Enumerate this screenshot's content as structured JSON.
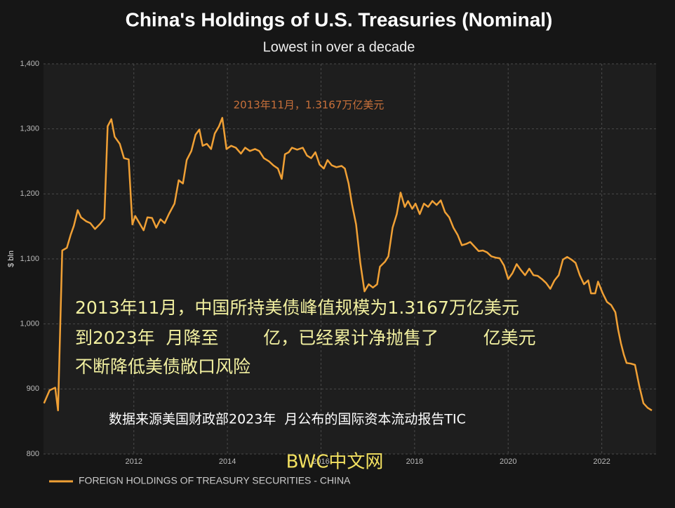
{
  "chart_data": {
    "type": "line",
    "title": "China's Holdings of U.S. Treasuries (Nominal)",
    "subtitle": "Lowest in over a decade",
    "y_label": "$ bln",
    "annotation": "2013年11月，1.3167万亿美元",
    "legend_position": "bottom-left",
    "grid": true,
    "xlim": [
      2010.07,
      2023.16
    ],
    "xticks": [
      2012,
      2014,
      2016,
      2018,
      2020,
      2022
    ],
    "ylim": [
      800,
      1400
    ],
    "yticks": [
      {
        "value": 800,
        "label": "800"
      },
      {
        "value": 900,
        "label": "900"
      },
      {
        "value": 1000,
        "label": "1,000"
      },
      {
        "value": 1100,
        "label": "1,100"
      },
      {
        "value": 1200,
        "label": "1,200"
      },
      {
        "value": 1300,
        "label": "1,300"
      },
      {
        "value": 1400,
        "label": "1,400"
      }
    ],
    "x": [
      2010.08,
      2010.2,
      2010.32,
      2010.38,
      2010.47,
      2010.57,
      2010.65,
      2010.72,
      2010.8,
      2010.87,
      2010.98,
      2011.07,
      2011.17,
      2011.28,
      2011.37,
      2011.44,
      2011.52,
      2011.59,
      2011.7,
      2011.79,
      2011.89,
      2011.97,
      2012.03,
      2012.12,
      2012.21,
      2012.29,
      2012.39,
      2012.48,
      2012.57,
      2012.66,
      2012.75,
      2012.87,
      2012.96,
      2013.05,
      2013.13,
      2013.23,
      2013.32,
      2013.4,
      2013.47,
      2013.56,
      2013.65,
      2013.73,
      2013.82,
      2013.89,
      2013.98,
      2014.08,
      2014.18,
      2014.29,
      2014.38,
      2014.48,
      2014.59,
      2014.68,
      2014.78,
      2014.89,
      2014.98,
      2015.08,
      2015.16,
      2015.23,
      2015.31,
      2015.38,
      2015.49,
      2015.61,
      2015.7,
      2015.79,
      2015.88,
      2015.97,
      2016.06,
      2016.14,
      2016.23,
      2016.33,
      2016.44,
      2016.51,
      2016.59,
      2016.66,
      2016.75,
      2016.84,
      2016.93,
      2017.02,
      2017.11,
      2017.2,
      2017.26,
      2017.37,
      2017.44,
      2017.53,
      2017.62,
      2017.7,
      2017.79,
      2017.86,
      2017.95,
      2018.02,
      2018.11,
      2018.2,
      2018.29,
      2018.38,
      2018.47,
      2018.56,
      2018.65,
      2018.74,
      2018.83,
      2018.92,
      2019.01,
      2019.1,
      2019.19,
      2019.28,
      2019.37,
      2019.46,
      2019.55,
      2019.64,
      2019.73,
      2019.82,
      2019.91,
      2020.0,
      2020.09,
      2020.18,
      2020.27,
      2020.36,
      2020.45,
      2020.54,
      2020.63,
      2020.72,
      2020.81,
      2020.9,
      2020.99,
      2021.08,
      2021.17,
      2021.26,
      2021.35,
      2021.44,
      2021.53,
      2021.62,
      2021.71,
      2021.77,
      2021.86,
      2021.92,
      2022.02,
      2022.11,
      2022.2,
      2022.29,
      2022.35,
      2022.41,
      2022.47,
      2022.53,
      2022.62,
      2022.71,
      2022.8,
      2022.89,
      2022.98,
      2023.07
    ],
    "series": [
      {
        "name": "FOREIGN HOLDINGS OF TREASURY SECURITIES - CHINA",
        "color": "#f0a035",
        "values": [
          878,
          898,
          902,
          867,
          1113,
          1117,
          1137,
          1151,
          1175,
          1164,
          1158,
          1155,
          1146,
          1154,
          1162,
          1304,
          1315,
          1288,
          1277,
          1255,
          1253,
          1153,
          1166,
          1155,
          1144,
          1164,
          1163,
          1148,
          1161,
          1155,
          1169,
          1185,
          1221,
          1216,
          1252,
          1266,
          1291,
          1299,
          1274,
          1277,
          1269,
          1293,
          1304,
          1317,
          1269,
          1274,
          1271,
          1262,
          1271,
          1266,
          1269,
          1266,
          1255,
          1250,
          1244,
          1239,
          1223,
          1261,
          1264,
          1271,
          1268,
          1271,
          1259,
          1255,
          1264,
          1245,
          1239,
          1252,
          1244,
          1241,
          1243,
          1239,
          1216,
          1185,
          1153,
          1094,
          1050,
          1061,
          1056,
          1061,
          1088,
          1096,
          1104,
          1148,
          1169,
          1202,
          1180,
          1189,
          1177,
          1185,
          1169,
          1185,
          1180,
          1189,
          1183,
          1190,
          1172,
          1164,
          1148,
          1137,
          1121,
          1123,
          1126,
          1119,
          1112,
          1113,
          1110,
          1104,
          1102,
          1101,
          1090,
          1069,
          1078,
          1092,
          1083,
          1075,
          1085,
          1075,
          1074,
          1069,
          1063,
          1054,
          1067,
          1075,
          1099,
          1103,
          1099,
          1094,
          1075,
          1061,
          1067,
          1047,
          1047,
          1065,
          1047,
          1034,
          1029,
          1018,
          991,
          970,
          953,
          940,
          939,
          937,
          905,
          878,
          871,
          867
        ]
      }
    ]
  },
  "overlay": {
    "lines": [
      "2013年11月，中国所持美债峰值规模为1.3167万亿美元",
      "到2023年  月降至        亿，已经累计净抛售了        亿美元",
      "不断降低美债敞口风险"
    ],
    "source": "数据来源美国财政部2023年  月公布的国际资本流动报告TIC",
    "watermark": "BWC中文网"
  }
}
